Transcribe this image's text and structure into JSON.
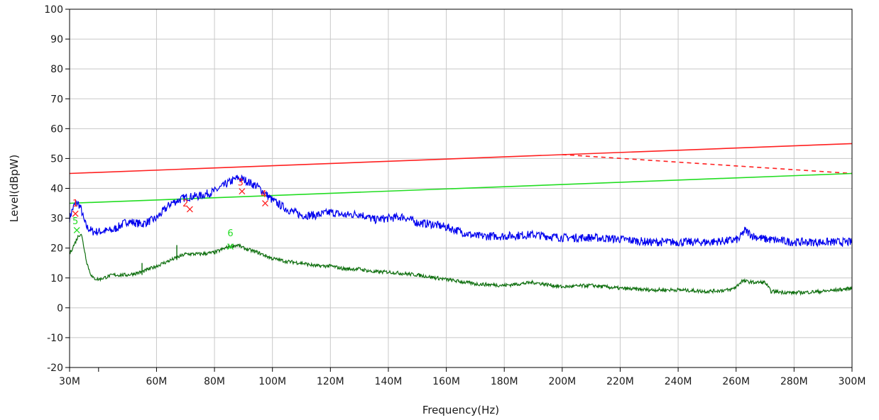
{
  "chart_data": {
    "type": "line",
    "xlabel": "Frequency(Hz)",
    "ylabel": "Level(dBpW)",
    "xlim": [
      30,
      300
    ],
    "ylim": [
      -20,
      100
    ],
    "grid": true,
    "x_ticks": [
      30,
      60,
      80,
      100,
      120,
      140,
      160,
      180,
      200,
      220,
      240,
      260,
      280,
      300
    ],
    "x_minor_ticks": [
      40
    ],
    "x_tick_labels": [
      "30M",
      "60M",
      "80M",
      "100M",
      "120M",
      "140M",
      "160M",
      "180M",
      "200M",
      "220M",
      "240M",
      "260M",
      "280M",
      "300M"
    ],
    "y_ticks": [
      -20,
      -10,
      0,
      10,
      20,
      30,
      40,
      50,
      60,
      70,
      80,
      90,
      100
    ],
    "y_tick_labels": [
      "-20",
      "-10",
      "0",
      "10",
      "20",
      "30",
      "40",
      "50",
      "60",
      "70",
      "80",
      "90",
      "100"
    ],
    "series": [
      {
        "color": "#ff2020",
        "style": "solid",
        "x": [
          30,
          300
        ],
        "values": [
          45,
          55
        ]
      },
      {
        "color": "#ff2020",
        "style": "dashed",
        "x": [
          200,
          300
        ],
        "values": [
          51.3,
          45
        ]
      },
      {
        "color": "#22dd22",
        "style": "solid",
        "x": [
          30,
          300
        ],
        "values": [
          35,
          45
        ]
      },
      {
        "color": "#0000ee",
        "style": "noisy",
        "x": [
          30,
          31,
          32,
          33,
          34,
          35,
          36,
          38,
          40,
          45,
          50,
          55,
          60,
          65,
          70,
          75,
          80,
          85,
          88,
          90,
          95,
          100,
          105,
          110,
          115,
          120,
          125,
          130,
          135,
          140,
          145,
          150,
          155,
          160,
          170,
          180,
          190,
          200,
          210,
          220,
          230,
          240,
          250,
          258,
          261,
          263,
          266,
          270,
          280,
          290,
          300
        ],
        "values": [
          30,
          33,
          35,
          35,
          33,
          29,
          27,
          25.5,
          25.5,
          26,
          29,
          28,
          30,
          35,
          37,
          37.5,
          39,
          42,
          43.5,
          43,
          40.5,
          36,
          33,
          31,
          31,
          32,
          31,
          31.5,
          29.5,
          30,
          30.5,
          28.5,
          28,
          27,
          24,
          24,
          24.5,
          23.5,
          23.5,
          23,
          22,
          22,
          22,
          22.5,
          23,
          26,
          24,
          23,
          22,
          22,
          22
        ]
      },
      {
        "color": "#107010",
        "style": "noisy",
        "x": [
          30,
          31,
          32,
          33,
          34,
          35,
          36,
          37,
          38,
          40,
          45,
          50,
          55,
          60,
          65,
          70,
          75,
          80,
          85,
          88,
          90,
          95,
          100,
          105,
          110,
          115,
          120,
          125,
          130,
          135,
          140,
          145,
          150,
          160,
          170,
          180,
          190,
          200,
          210,
          220,
          230,
          240,
          250,
          258,
          260,
          262,
          266,
          268,
          270,
          272,
          280,
          290,
          300
        ],
        "values": [
          18,
          20,
          22,
          24,
          25,
          20,
          15,
          12,
          10,
          9.5,
          11,
          11,
          12,
          14,
          16,
          18,
          18,
          18.5,
          20.5,
          21,
          20,
          18.5,
          16.5,
          15.5,
          15,
          14,
          14,
          13,
          13,
          12,
          12,
          11.5,
          11,
          9.5,
          8,
          7.5,
          8.5,
          7,
          7.5,
          6.5,
          6,
          6,
          5.5,
          6,
          7,
          9,
          8.5,
          8.5,
          8.5,
          5.5,
          5,
          5.5,
          6.5
        ]
      }
    ],
    "spikes": [
      {
        "x": 55,
        "from": 11,
        "to": 15
      },
      {
        "x": 67,
        "from": 16,
        "to": 21
      }
    ],
    "markers": [
      {
        "label": "1",
        "x": 32,
        "y": 34,
        "color": "#ff2020",
        "shape": "digit"
      },
      {
        "label": "2",
        "x": 70,
        "y": 34,
        "color": "#ff2020",
        "shape": "digit"
      },
      {
        "label": "3",
        "x": 89,
        "y": 41,
        "color": "#ff2020",
        "shape": "digit"
      },
      {
        "label": "4",
        "x": 97,
        "y": 37,
        "color": "#ff2020",
        "shape": "digit"
      },
      {
        "label": "5",
        "x": 32,
        "y": 28,
        "color": "#22dd22",
        "shape": "digit"
      },
      {
        "label": "6",
        "x": 85.5,
        "y": 24,
        "color": "#22dd22",
        "shape": "digit"
      },
      {
        "label": "",
        "x": 32,
        "y": 31.5,
        "color": "#ff2020",
        "shape": "cross"
      },
      {
        "label": "",
        "x": 71.5,
        "y": 33,
        "color": "#ff2020",
        "shape": "cross"
      },
      {
        "label": "",
        "x": 89.5,
        "y": 39,
        "color": "#ff2020",
        "shape": "cross"
      },
      {
        "label": "",
        "x": 97.5,
        "y": 35,
        "color": "#ff2020",
        "shape": "cross"
      },
      {
        "label": "",
        "x": 32.5,
        "y": 26,
        "color": "#22dd22",
        "shape": "cross"
      },
      {
        "label": "",
        "x": 85.5,
        "y": 20.5,
        "color": "#22dd22",
        "shape": "cross"
      }
    ]
  }
}
